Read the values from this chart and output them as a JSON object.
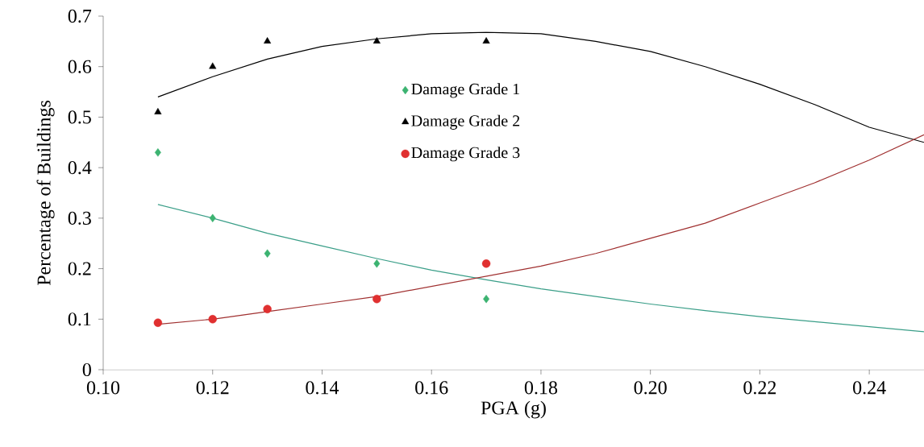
{
  "chart_data": {
    "type": "scatter",
    "xlabel": "PGA (g)",
    "ylabel": "Percentage of Buildings",
    "xlim": [
      0.1,
      0.25
    ],
    "ylim": [
      0,
      0.7
    ],
    "xticks": [
      {
        "value": 0.1,
        "label": "0.10"
      },
      0.12,
      0.14,
      0.16,
      0.18,
      {
        "value": 0.2,
        "label": "0.20"
      },
      0.22,
      0.24
    ],
    "yticks": [
      0,
      0.1,
      0.2,
      0.3,
      0.4,
      0.5,
      0.6,
      0.7
    ],
    "legend": "top",
    "grid": false,
    "series": [
      {
        "name": "Damage Grade 1",
        "marker": "diamond",
        "color": "#3cb371",
        "x": [
          0.11,
          0.12,
          0.13,
          0.15,
          0.17
        ],
        "values": [
          0.43,
          0.3,
          0.23,
          0.21,
          0.14
        ]
      },
      {
        "name": "Damage Grade 2",
        "marker": "triangle",
        "color": "#000000",
        "x": [
          0.11,
          0.12,
          0.13,
          0.15,
          0.17
        ],
        "values": [
          0.51,
          0.6,
          0.65,
          0.65,
          0.65
        ]
      },
      {
        "name": "Damage Grade 3",
        "marker": "circle",
        "color": "#e03030",
        "x": [
          0.11,
          0.12,
          0.13,
          0.15,
          0.17
        ],
        "values": [
          0.093,
          0.1,
          0.12,
          0.14,
          0.21
        ]
      },
      {
        "type": "line",
        "marker": "none",
        "color": "#3a9e88",
        "x": [
          0.11,
          0.12,
          0.13,
          0.14,
          0.15,
          0.16,
          0.17,
          0.18,
          0.19,
          0.2,
          0.21,
          0.22,
          0.23,
          0.24,
          0.25
        ],
        "values": [
          0.327,
          0.3,
          0.27,
          0.245,
          0.22,
          0.197,
          0.178,
          0.16,
          0.145,
          0.13,
          0.117,
          0.105,
          0.095,
          0.085,
          0.075
        ]
      },
      {
        "type": "line",
        "marker": "none",
        "color": "#000000",
        "x": [
          0.11,
          0.12,
          0.13,
          0.14,
          0.15,
          0.16,
          0.17,
          0.18,
          0.19,
          0.2,
          0.21,
          0.22,
          0.23,
          0.24,
          0.25
        ],
        "values": [
          0.54,
          0.58,
          0.615,
          0.64,
          0.655,
          0.665,
          0.668,
          0.665,
          0.65,
          0.63,
          0.6,
          0.565,
          0.525,
          0.48,
          0.45
        ]
      },
      {
        "type": "line",
        "marker": "none",
        "color": "#a03030",
        "x": [
          0.11,
          0.12,
          0.13,
          0.14,
          0.15,
          0.16,
          0.17,
          0.18,
          0.19,
          0.2,
          0.21,
          0.22,
          0.23,
          0.24,
          0.25
        ],
        "values": [
          0.09,
          0.1,
          0.115,
          0.13,
          0.145,
          0.165,
          0.185,
          0.205,
          0.23,
          0.26,
          0.29,
          0.33,
          0.37,
          0.415,
          0.465
        ]
      }
    ]
  }
}
